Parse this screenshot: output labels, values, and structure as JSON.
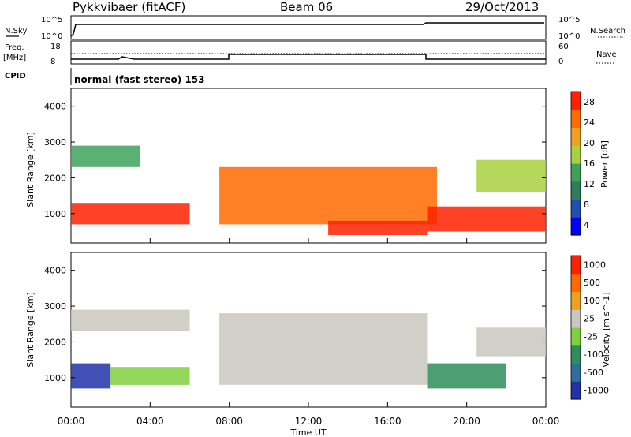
{
  "header": {
    "station": "Pykkvibaer (fitACF)",
    "beam": "Beam 06",
    "date": "29/Oct/2013"
  },
  "top_panels": {
    "nsky_label": "N.Sky",
    "nsky_ticks": [
      "10^5",
      "10^0"
    ],
    "nsearch_label": "N.Search",
    "nsearch_ticks": [
      "10^5",
      "10^0"
    ],
    "freq_label": "Freq.",
    "freq_unit": "[MHz]",
    "freq_ticks": [
      "18",
      "8"
    ],
    "nave_label": "Nave",
    "nave_ticks": [
      "60",
      "0"
    ],
    "cpid_label": "CPID",
    "cpid_text": "normal (fast stereo) 153"
  },
  "chart_data": [
    {
      "type": "heatmap",
      "name": "power",
      "ylabel": "Slant Range [km]",
      "yticks": [
        "4000",
        "3000",
        "2000",
        "1000"
      ],
      "ylim": [
        180,
        4500
      ],
      "colorbar_label": "Power [dB]",
      "colorbar_ticks": [
        "28",
        "24",
        "20",
        "16",
        "12",
        "8",
        "4"
      ],
      "colorbar_colors": [
        "#0000ff",
        "#1f4fb0",
        "#2e7e5a",
        "#3ea35a",
        "#a8d040",
        "#f0a020",
        "#ff6a00",
        "#ff2000"
      ],
      "bands": [
        {
          "t0": 0.0,
          "t1": 6.0,
          "r0": 700,
          "r1": 1300,
          "level": 7
        },
        {
          "t0": 0.0,
          "t1": 3.5,
          "r0": 2300,
          "r1": 2900,
          "level": 3
        },
        {
          "t0": 7.5,
          "t1": 18.5,
          "r0": 700,
          "r1": 2300,
          "level": 6
        },
        {
          "t0": 13.0,
          "t1": 18.0,
          "r0": 400,
          "r1": 800,
          "level": 7
        },
        {
          "t0": 18.0,
          "t1": 24.0,
          "r0": 500,
          "r1": 1200,
          "level": 7
        },
        {
          "t0": 20.5,
          "t1": 24.0,
          "r0": 1600,
          "r1": 2500,
          "level": 4
        }
      ]
    },
    {
      "type": "heatmap",
      "name": "velocity",
      "ylabel": "Slant Range [km]",
      "yticks": [
        "4000",
        "3000",
        "2000",
        "1000"
      ],
      "ylim": [
        180,
        4500
      ],
      "xticks": [
        "00:00",
        "04:00",
        "08:00",
        "12:00",
        "16:00",
        "20:00",
        "00:00"
      ],
      "xlabel": "Time UT",
      "colorbar_label": "Velocity [m s^-1]",
      "colorbar_ticks": [
        "1000",
        "500",
        "100",
        "25",
        "-25",
        "-100",
        "-500",
        "-1000"
      ],
      "colorbar_colors": [
        "#2233aa",
        "#2e6e9e",
        "#2e8e5a",
        "#7fcf3f",
        "#c8c8c0",
        "#f0a020",
        "#ff6a00",
        "#ff2000"
      ],
      "bands": [
        {
          "t0": 0.0,
          "t1": 2.0,
          "r0": 700,
          "r1": 1400,
          "level": 0
        },
        {
          "t0": 2.0,
          "t1": 6.0,
          "r0": 800,
          "r1": 1300,
          "level": 3
        },
        {
          "t0": 0.0,
          "t1": 6.0,
          "r0": 2300,
          "r1": 2900,
          "level": 4
        },
        {
          "t0": 7.5,
          "t1": 18.0,
          "r0": 800,
          "r1": 2800,
          "level": 4
        },
        {
          "t0": 18.0,
          "t1": 22.0,
          "r0": 700,
          "r1": 1400,
          "level": 2
        },
        {
          "t0": 20.5,
          "t1": 24.0,
          "r0": 1600,
          "r1": 2400,
          "level": 4
        }
      ]
    }
  ]
}
